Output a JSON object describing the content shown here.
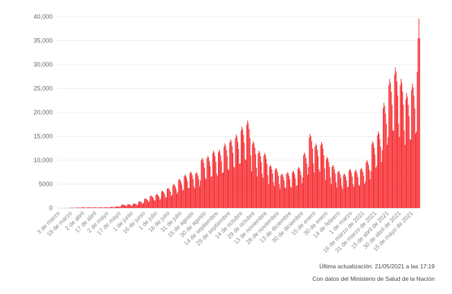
{
  "chart_data": {
    "type": "bar",
    "title": "",
    "xlabel": "",
    "ylabel": "",
    "ylim": [
      0,
      40000
    ],
    "yticks": [
      "0",
      "5000",
      "10,000",
      "15,000",
      "20,000",
      "25,000",
      "30,000",
      "35,000",
      "40,000"
    ],
    "ytick_values": [
      0,
      5000,
      10000,
      15000,
      20000,
      25000,
      30000,
      35000,
      40000
    ],
    "grid": true,
    "bar_color": "#f5262b",
    "x_start": "3 de marzo de 2020",
    "x_end": "21 de mayo de 2021",
    "tick_every_days": 15,
    "xticks": [
      "3 de marzo",
      "18 de marzo",
      "2 de abril",
      "17 de abril",
      "2 de mayo",
      "17 de mayo",
      "1 de junio",
      "16 de junio",
      "1 de julio",
      "16 de julio",
      "31 de julio",
      "15 de agosto",
      "30 de agosto",
      "14 de septiembre",
      "29 de septiembre",
      "14 de octubre",
      "29 de octubre",
      "13 de noviembre",
      "28 de noviembre",
      "13 de diciembre",
      "30 de diciembre",
      "15 de enero",
      "30 de enero",
      "14 de febrero",
      "1 de marzo",
      "16 de marzo de 2021",
      "31 de marzo de 2021",
      "15 de abril de 2021",
      "30 de abril de 2021",
      "15 de mayo de 2021"
    ],
    "values": [
      1,
      0,
      1,
      2,
      3,
      2,
      7,
      11,
      12,
      12,
      11,
      10,
      7,
      33,
      57,
      60,
      58,
      54,
      48,
      36,
      55,
      95,
      100,
      97,
      90,
      80,
      60,
      83,
      143,
      150,
      146,
      135,
      120,
      90,
      94,
      162,
      170,
      165,
      153,
      136,
      102,
      83,
      143,
      150,
      146,
      135,
      120,
      90,
      88,
      152,
      160,
      155,
      144,
      128,
      96,
      94,
      162,
      170,
      165,
      153,
      136,
      102,
      132,
      228,
      240,
      233,
      216,
      192,
      144,
      193,
      333,
      350,
      340,
      315,
      280,
      210,
      402,
      694,
      730,
      708,
      657,
      584,
      438,
      440,
      760,
      800,
      776,
      720,
      640,
      480,
      523,
      903,
      950,
      922,
      855,
      760,
      570,
      770,
      1330,
      1400,
      1358,
      1260,
      1120,
      840,
      1100,
      1900,
      2000,
      1940,
      1800,
      1600,
      1200,
      1430,
      2470,
      2600,
      2522,
      2340,
      2080,
      1560,
      1595,
      2755,
      2900,
      2813,
      2610,
      2320,
      1740,
      1980,
      3420,
      3600,
      3492,
      3240,
      2880,
      2160,
      2310,
      3990,
      4200,
      4074,
      3780,
      3360,
      2520,
      2750,
      4750,
      5000,
      4850,
      4500,
      4000,
      3000,
      3355,
      5795,
      6100,
      5917,
      5490,
      4880,
      3660,
      3850,
      6650,
      7000,
      6790,
      6300,
      5600,
      4200,
      4180,
      7220,
      7600,
      7372,
      6840,
      6080,
      4560,
      4125,
      7125,
      7500,
      7275,
      6750,
      6000,
      4500,
      5775,
      9975,
      10500,
      10185,
      9450,
      8400,
      6300,
      5995,
      10355,
      10900,
      10573,
      9810,
      8720,
      6540,
      6600,
      11400,
      12000,
      11640,
      10800,
      9600,
      7200,
      6710,
      11590,
      12200,
      11834,
      10980,
      9760,
      7320,
      7425,
      12825,
      13500,
      13095,
      12150,
      10800,
      8100,
      7920,
      13680,
      14400,
      13968,
      12960,
      11520,
      8640,
      8470,
      14630,
      15400,
      14938,
      13860,
      12320,
      9240,
      9350,
      16150,
      17000,
      16490,
      15300,
      13600,
      10200,
      10065,
      17385,
      18300,
      17751,
      16470,
      14640,
      10980,
      7700,
      13300,
      14000,
      13580,
      12600,
      11200,
      8400,
      6600,
      11400,
      12000,
      11640,
      10800,
      9600,
      7200,
      6325,
      10925,
      11500,
      11155,
      10350,
      9200,
      6900,
      4950,
      8550,
      9000,
      8730,
      8100,
      7200,
      5400,
      4620,
      7980,
      8400,
      8148,
      7560,
      6720,
      5040,
      3960,
      6840,
      7200,
      6984,
      6480,
      5760,
      4320,
      4125,
      7125,
      7500,
      7275,
      6750,
      6000,
      4500,
      4290,
      7410,
      7800,
      7566,
      7020,
      6240,
      4680,
      4730,
      8170,
      8600,
      8342,
      7740,
      6880,
      5160,
      6380,
      11020,
      11600,
      11252,
      10440,
      9280,
      6960,
      8525,
      14725,
      15500,
      15035,
      13950,
      12400,
      9300,
      7425,
      12825,
      13500,
      13095,
      12150,
      10800,
      8100,
      7590,
      13110,
      13800,
      13386,
      12420,
      11040,
      8280,
      5885,
      10165,
      10700,
      10379,
      9630,
      8560,
      6420,
      4950,
      8550,
      9000,
      8730,
      8100,
      7200,
      5400,
      4290,
      7410,
      7800,
      7566,
      7020,
      6240,
      4680,
      3960,
      6840,
      7200,
      6984,
      6480,
      5760,
      4320,
      4510,
      7790,
      8200,
      7954,
      7380,
      6560,
      4920,
      4400,
      7600,
      8000,
      7760,
      7200,
      6400,
      4800,
      4620,
      7980,
      8400,
      8148,
      7560,
      6720,
      5040,
      5500,
      9500,
      10000,
      9700,
      9000,
      8000,
      6000,
      7700,
      13300,
      14000,
      13580,
      12600,
      11200,
      8400,
      8800,
      15200,
      16000,
      15520,
      14400,
      12800,
      9600,
      12100,
      20900,
      22000,
      21340,
      19800,
      17600,
      13200,
      14850,
      25650,
      27000,
      26190,
      24300,
      21600,
      16200,
      16170,
      27930,
      29400,
      28518,
      26460,
      23520,
      17640,
      14850,
      25650,
      27000,
      26190,
      24300,
      21600,
      16200,
      13200,
      22800,
      24000,
      23280,
      21600,
      19200,
      14400,
      14300,
      24700,
      26000,
      25220,
      23400,
      20800,
      15600,
      16000,
      28500,
      35500,
      39600,
      35500
    ]
  },
  "footer": {
    "updated": "Última actualización: 21/05/2021 a las 17:19",
    "source": "Con datos del Ministerio de Salud de la Nación"
  }
}
